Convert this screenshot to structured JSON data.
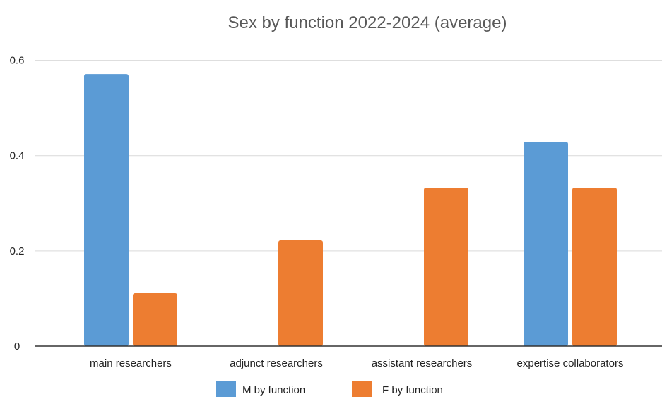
{
  "chart_data": {
    "type": "bar",
    "title": "Sex by function 2022-2024 (average)",
    "categories": [
      "main researchers",
      "adjunct researchers",
      "assistant researchers",
      "expertise collaborators"
    ],
    "series": [
      {
        "name": "M by function",
        "color": "#5b9bd5",
        "values": [
          0.571,
          0,
          0,
          0.429
        ]
      },
      {
        "name": "F by function",
        "color": "#ed7d31",
        "values": [
          0.111,
          0.222,
          0.333,
          0.333
        ]
      }
    ],
    "y_ticks": [
      "0",
      "0.2",
      "0.4",
      "0.6"
    ],
    "y_tick_values": [
      0,
      0.2,
      0.4,
      0.6
    ],
    "ylim": [
      0,
      0.7
    ],
    "xlabel": "",
    "ylabel": "",
    "grid": true,
    "legend_position": "bottom"
  }
}
